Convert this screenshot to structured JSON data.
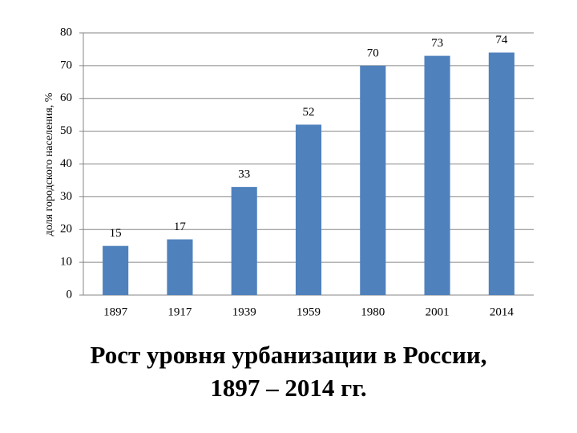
{
  "chart_data": {
    "type": "bar",
    "title": [
      "Рост уровня урбанизации в России,",
      "1897 – 2014 гг."
    ],
    "y_label": "доля городского населения, %",
    "categories": [
      "1897",
      "1917",
      "1939",
      "1959",
      "1980",
      "2001",
      "2014"
    ],
    "values": [
      15,
      17,
      33,
      52,
      70,
      73,
      74
    ],
    "color": "#4f81bd",
    "ylim": [
      0,
      80
    ],
    "yticks": [
      0,
      10,
      20,
      30,
      40,
      50,
      60,
      70,
      80
    ],
    "grid": true
  }
}
